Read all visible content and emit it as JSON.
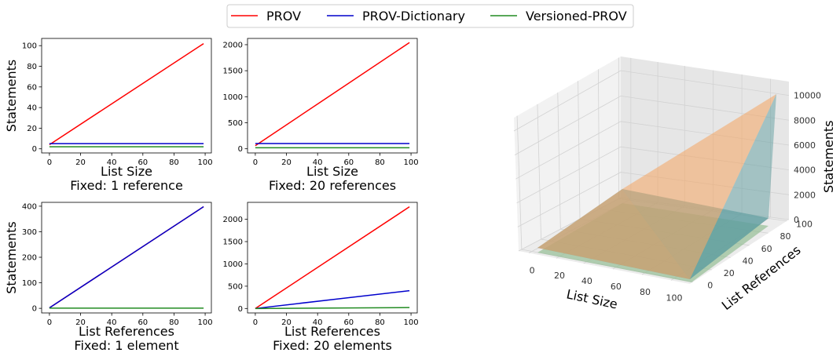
{
  "legend": {
    "placement": "top-center",
    "items": [
      {
        "label": "PROV",
        "color": "#ff0000"
      },
      {
        "label": "PROV-Dictionary",
        "color": "#0000cc"
      },
      {
        "label": "Versioned-PROV",
        "color": "#228b22"
      }
    ]
  },
  "chart_data": [
    {
      "type": "line",
      "ylabel": "Statements",
      "xlabel": "List Size",
      "subtitle": "Fixed: 1 reference",
      "xlim": [
        -5,
        104
      ],
      "ylim": [
        -4,
        107
      ],
      "xticks": [
        0,
        20,
        40,
        60,
        80,
        100
      ],
      "yticks": [
        0,
        20,
        40,
        60,
        80,
        100
      ],
      "series": [
        {
          "name": "PROV",
          "color": "#ff0000",
          "x": [
            0,
            99
          ],
          "y": [
            4,
            102
          ]
        },
        {
          "name": "PROV-Dictionary",
          "color": "#0000cc",
          "x": [
            0,
            99
          ],
          "y": [
            5,
            5
          ]
        },
        {
          "name": "Versioned-PROV",
          "color": "#228b22",
          "x": [
            0,
            99
          ],
          "y": [
            2,
            2
          ]
        }
      ]
    },
    {
      "type": "line",
      "ylabel": "",
      "xlabel": "List Size",
      "subtitle": "Fixed: 20 references",
      "xlim": [
        -5,
        104
      ],
      "ylim": [
        -80,
        2120
      ],
      "xticks": [
        0,
        20,
        40,
        60,
        80,
        100
      ],
      "yticks": [
        0,
        500,
        1000,
        1500,
        2000
      ],
      "series": [
        {
          "name": "PROV",
          "color": "#ff0000",
          "x": [
            0,
            99
          ],
          "y": [
            60,
            2040
          ]
        },
        {
          "name": "PROV-Dictionary",
          "color": "#0000cc",
          "x": [
            0,
            99
          ],
          "y": [
            100,
            100
          ]
        },
        {
          "name": "Versioned-PROV",
          "color": "#228b22",
          "x": [
            0,
            99
          ],
          "y": [
            20,
            20
          ]
        }
      ]
    },
    {
      "type": "line",
      "ylabel": "Statements",
      "xlabel": "List References",
      "subtitle": "Fixed: 1 element",
      "xlim": [
        -5,
        104
      ],
      "ylim": [
        -18,
        415
      ],
      "xticks": [
        0,
        20,
        40,
        60,
        80,
        100
      ],
      "yticks": [
        0,
        100,
        200,
        300,
        400
      ],
      "series": [
        {
          "name": "PROV",
          "color": "#ff0000",
          "x": [
            0,
            99
          ],
          "y": [
            2,
            398
          ]
        },
        {
          "name": "PROV-Dictionary",
          "color": "#0000cc",
          "x": [
            0,
            99
          ],
          "y": [
            2,
            398
          ]
        },
        {
          "name": "Versioned-PROV",
          "color": "#228b22",
          "x": [
            0,
            99
          ],
          "y": [
            1,
            1
          ]
        }
      ]
    },
    {
      "type": "line",
      "ylabel": "",
      "xlabel": "List References",
      "subtitle": "Fixed: 20 elements",
      "xlim": [
        -5,
        104
      ],
      "ylim": [
        -100,
        2380
      ],
      "xticks": [
        0,
        20,
        40,
        60,
        80,
        100
      ],
      "yticks": [
        0,
        500,
        1000,
        1500,
        2000
      ],
      "series": [
        {
          "name": "PROV",
          "color": "#ff0000",
          "x": [
            0,
            99
          ],
          "y": [
            0,
            2280
          ]
        },
        {
          "name": "PROV-Dictionary",
          "color": "#0000cc",
          "x": [
            0,
            99
          ],
          "y": [
            0,
            400
          ]
        },
        {
          "name": "Versioned-PROV",
          "color": "#228b22",
          "x": [
            0,
            99
          ],
          "y": [
            0,
            20
          ]
        }
      ]
    },
    {
      "type": "surface3d",
      "xlabel": "List Size",
      "ylabel": "List References",
      "zlabel": "Statements",
      "xticks": [
        0,
        20,
        40,
        60,
        80,
        100
      ],
      "yticks": [
        0,
        20,
        40,
        60,
        80,
        100
      ],
      "zticks": [
        0,
        2000,
        4000,
        6000,
        8000,
        10000
      ],
      "surfaces": [
        {
          "name": "PROV",
          "color": "#f4a460",
          "corner_values": {
            "x0y0": 0,
            "x100y0": 0,
            "x0y100": 0,
            "x100y100": 10000
          }
        },
        {
          "name": "PROV-Dictionary",
          "color": "#5f9ea0",
          "corner_values": {
            "x0y0": 0,
            "x100y0": 400,
            "x0y100": 400,
            "x100y100": 400
          }
        },
        {
          "name": "Versioned-PROV",
          "color": "#8fbc8f",
          "corner_values": {
            "x0y0": 0,
            "x100y0": 100,
            "x0y100": 100,
            "x100y100": 100
          }
        }
      ]
    }
  ]
}
